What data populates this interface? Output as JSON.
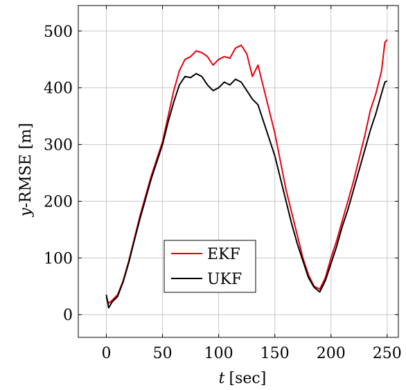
{
  "chart_data": {
    "type": "line",
    "xlabel_var": "t",
    "xlabel_unit": "[sec]",
    "ylabel_var": "y",
    "ylabel_text": "-RMSE [m]",
    "xlim": [
      -25,
      260
    ],
    "ylim": [
      -40,
      545
    ],
    "x_ticks": [
      0,
      50,
      100,
      150,
      200,
      250
    ],
    "y_ticks": [
      0,
      100,
      200,
      300,
      400,
      500
    ],
    "x_tick_labels": [
      "0",
      "50",
      "100",
      "150",
      "200",
      "250"
    ],
    "y_tick_labels": [
      "0",
      "100",
      "200",
      "300",
      "400",
      "500"
    ],
    "grid": true,
    "legend_position": "lower-center",
    "series": [
      {
        "name": "EKF",
        "color": "#e8000b",
        "x": [
          0,
          2,
          5,
          10,
          15,
          20,
          25,
          30,
          35,
          40,
          45,
          50,
          55,
          60,
          65,
          70,
          75,
          80,
          85,
          90,
          95,
          100,
          105,
          110,
          115,
          120,
          125,
          130,
          135,
          140,
          145,
          150,
          155,
          160,
          165,
          170,
          175,
          180,
          185,
          190,
          195,
          200,
          205,
          210,
          215,
          220,
          225,
          230,
          235,
          240,
          245,
          248,
          250
        ],
        "y": [
          30,
          20,
          25,
          35,
          60,
          95,
          135,
          175,
          210,
          245,
          275,
          305,
          350,
          395,
          430,
          450,
          455,
          465,
          462,
          455,
          440,
          450,
          455,
          452,
          470,
          475,
          460,
          420,
          440,
          400,
          360,
          320,
          270,
          220,
          180,
          140,
          100,
          70,
          50,
          45,
          65,
          100,
          130,
          165,
          200,
          235,
          275,
          315,
          360,
          390,
          430,
          480,
          485
        ]
      },
      {
        "name": "UKF",
        "color": "#000000",
        "x": [
          0,
          2,
          5,
          10,
          15,
          20,
          25,
          30,
          35,
          40,
          45,
          50,
          55,
          60,
          65,
          70,
          75,
          80,
          85,
          90,
          95,
          100,
          105,
          110,
          115,
          120,
          125,
          130,
          135,
          140,
          145,
          150,
          155,
          160,
          165,
          170,
          175,
          180,
          185,
          190,
          195,
          200,
          205,
          210,
          215,
          220,
          225,
          230,
          235,
          240,
          245,
          248,
          250
        ],
        "y": [
          35,
          12,
          22,
          32,
          58,
          92,
          132,
          170,
          205,
          240,
          270,
          300,
          340,
          375,
          405,
          420,
          418,
          425,
          420,
          405,
          395,
          400,
          410,
          405,
          415,
          410,
          395,
          380,
          370,
          340,
          310,
          280,
          240,
          200,
          160,
          125,
          95,
          65,
          48,
          40,
          60,
          90,
          120,
          155,
          185,
          220,
          255,
          290,
          325,
          355,
          390,
          410,
          412
        ]
      }
    ]
  }
}
